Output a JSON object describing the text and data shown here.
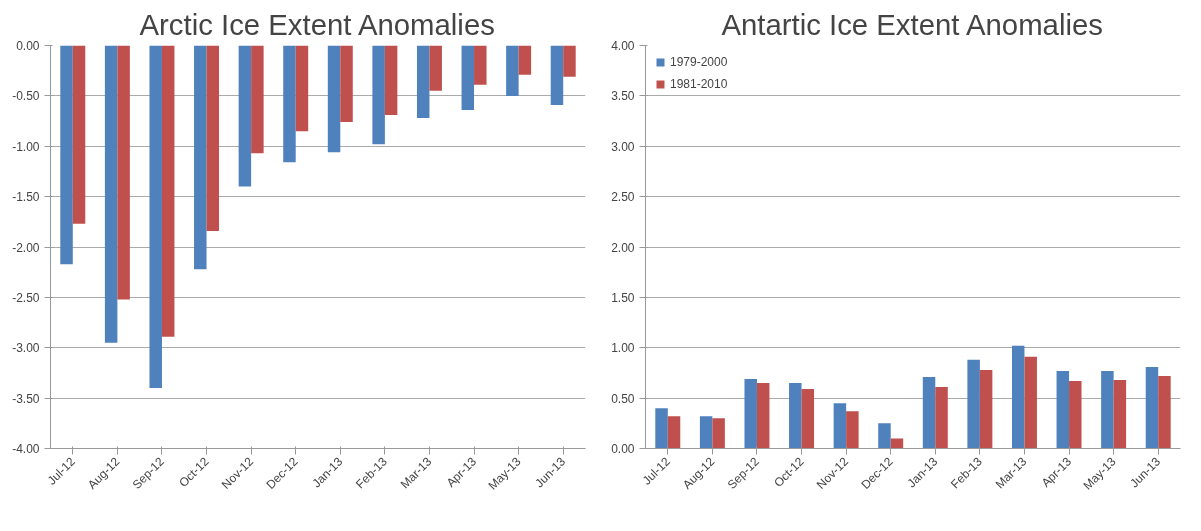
{
  "chart_data": [
    {
      "type": "bar",
      "title": "Arctic Ice Extent Anomalies",
      "categories": [
        "Jul-12",
        "Aug-12",
        "Sep-12",
        "Oct-12",
        "Nov-12",
        "Dec-12",
        "Jan-13",
        "Feb-13",
        "Mar-13",
        "Apr-13",
        "May-13",
        "Jun-13"
      ],
      "series": [
        {
          "color": "#4f81bd",
          "values": [
            -2.17,
            -2.95,
            -3.4,
            -2.22,
            -1.4,
            -1.16,
            -1.06,
            -0.98,
            -0.72,
            -0.64,
            -0.5,
            -0.59
          ]
        },
        {
          "color": "#c0504d",
          "values": [
            -1.77,
            -2.52,
            -2.89,
            -1.84,
            -1.07,
            -0.85,
            -0.76,
            -0.69,
            -0.45,
            -0.39,
            -0.29,
            -0.31
          ]
        }
      ],
      "ylim": [
        -4,
        0
      ],
      "yticks": [
        {
          "value": -4,
          "label": "-4.00"
        },
        {
          "value": -3.5,
          "label": "-3.50"
        },
        {
          "value": -3,
          "label": "-3.00"
        },
        {
          "value": -2.5,
          "label": "-2.50"
        },
        {
          "value": -2,
          "label": "-2.00"
        },
        {
          "value": -1.5,
          "label": "-1.50"
        },
        {
          "value": -1,
          "label": "-1.00"
        },
        {
          "value": -0.5,
          "label": "-0.50"
        },
        {
          "value": 0,
          "label": "0.00"
        }
      ],
      "grid": "y"
    },
    {
      "type": "bar",
      "title": "Antartic Ice Extent Anomalies",
      "categories": [
        "Jul-12",
        "Aug-12",
        "Sep-12",
        "Oct-12",
        "Nov-12",
        "Dec-12",
        "Jan-13",
        "Feb-13",
        "Mar-13",
        "Apr-13",
        "May-13",
        "Jun-13"
      ],
      "series": [
        {
          "name": "1979-2000",
          "color": "#4f81bd",
          "values": [
            0.4,
            0.32,
            0.69,
            0.65,
            0.45,
            0.25,
            0.71,
            0.88,
            1.02,
            0.77,
            0.77,
            0.81
          ]
        },
        {
          "name": "1981-2010",
          "color": "#c0504d",
          "values": [
            0.32,
            0.3,
            0.65,
            0.59,
            0.37,
            0.1,
            0.61,
            0.78,
            0.91,
            0.67,
            0.68,
            0.72
          ]
        }
      ],
      "ylim": [
        0,
        4
      ],
      "yticks": [
        {
          "value": 0,
          "label": "0.00"
        },
        {
          "value": 0.5,
          "label": "0.50"
        },
        {
          "value": 1,
          "label": "1.00"
        },
        {
          "value": 1.5,
          "label": "1.50"
        },
        {
          "value": 2,
          "label": "2.00"
        },
        {
          "value": 2.5,
          "label": "2.50"
        },
        {
          "value": 3,
          "label": "3.00"
        },
        {
          "value": 3.5,
          "label": "3.50"
        },
        {
          "value": 4,
          "label": "4.00"
        }
      ],
      "grid": "y",
      "legend": "top left"
    }
  ]
}
